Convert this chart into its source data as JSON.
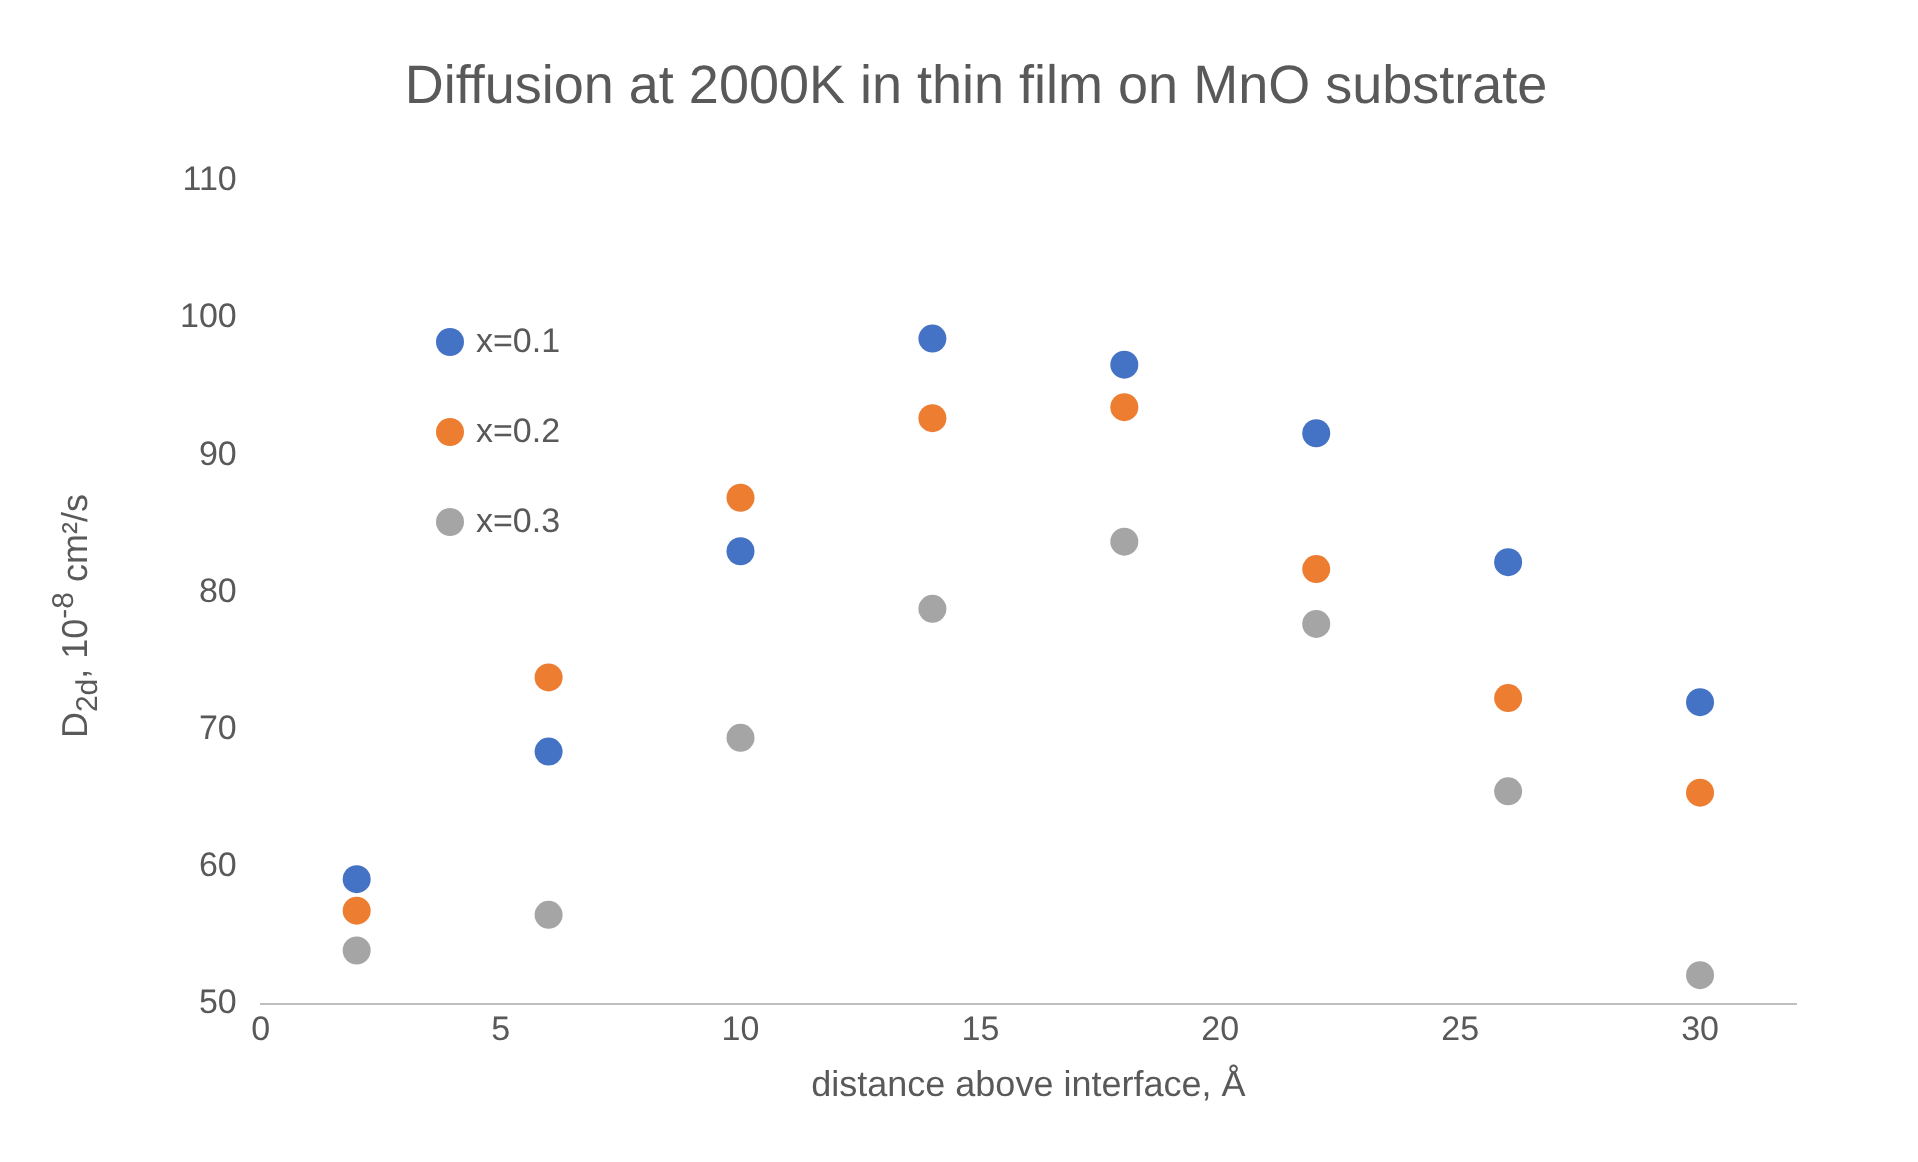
{
  "chart_data": {
    "type": "scatter",
    "title": "Diffusion at 2000K in thin film on MnO substrate",
    "xlabel": "distance above interface, Å",
    "ylabel": "D$_{2d}$, 10$^{-8}$ cm²/s",
    "x": [
      2,
      6,
      10,
      14,
      18,
      22,
      26,
      30
    ],
    "series": [
      {
        "name": "x=0.1",
        "color": "#4472c4",
        "values": [
          59.1,
          68.4,
          83.0,
          98.5,
          96.6,
          91.6,
          82.2,
          72.0
        ]
      },
      {
        "name": "x=0.2",
        "color": "#ed7d31",
        "values": [
          56.8,
          73.8,
          86.9,
          92.7,
          93.5,
          81.7,
          72.3,
          65.4
        ]
      },
      {
        "name": "x=0.3",
        "color": "#a5a5a5",
        "values": [
          53.9,
          56.5,
          69.4,
          78.8,
          83.7,
          77.7,
          65.5,
          52.1
        ]
      }
    ],
    "xlim": [
      0,
      32
    ],
    "xticks": [
      0,
      5,
      10,
      15,
      20,
      25,
      30
    ],
    "ylim": [
      50,
      110
    ],
    "yticks": [
      50,
      60,
      70,
      80,
      90,
      100,
      110
    ],
    "grid": false,
    "legend": "top left",
    "marker": "circle"
  }
}
